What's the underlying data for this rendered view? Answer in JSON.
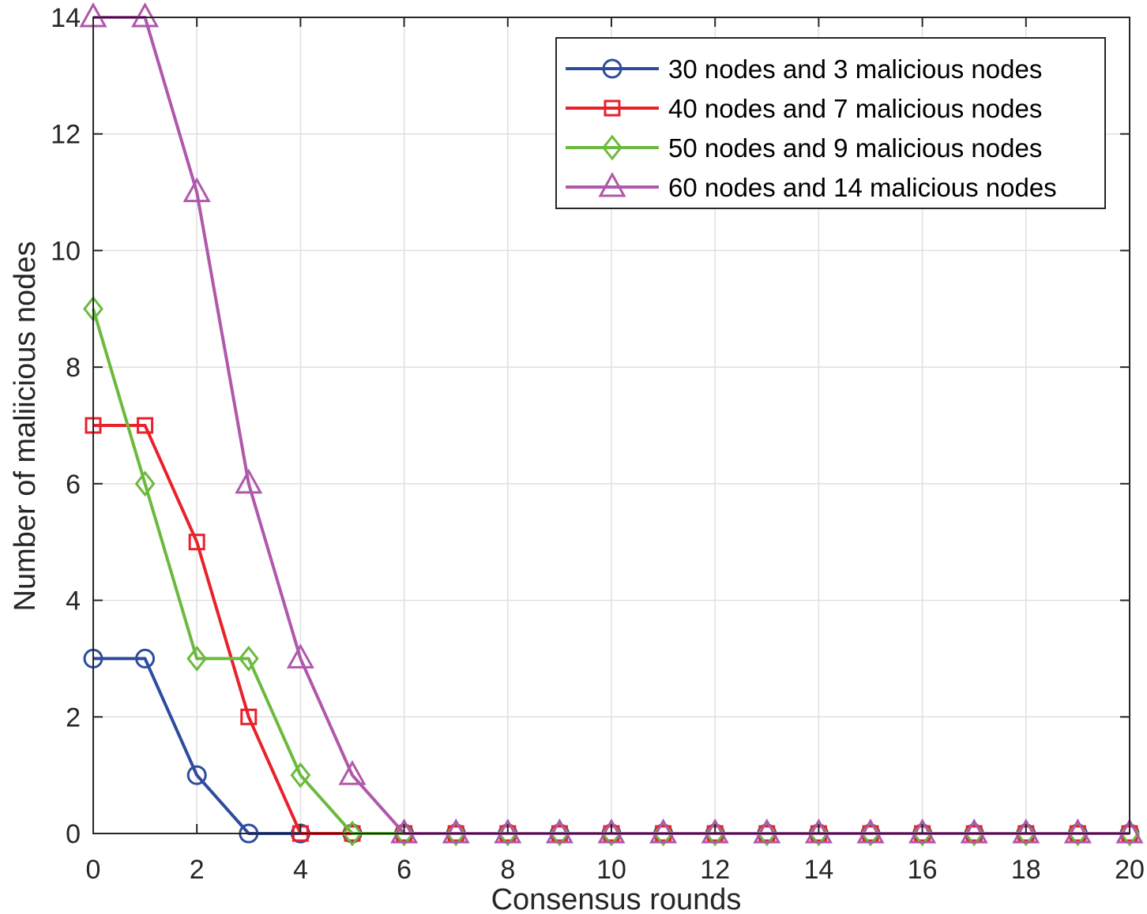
{
  "chart_data": {
    "type": "line",
    "xlabel": "Consensus rounds",
    "ylabel": "Number of maliicious nodes",
    "xlim": [
      0,
      20
    ],
    "ylim": [
      0,
      14
    ],
    "xticks": [
      0,
      2,
      4,
      6,
      8,
      10,
      12,
      14,
      16,
      18,
      20
    ],
    "yticks": [
      0,
      2,
      4,
      6,
      8,
      10,
      12,
      14
    ],
    "grid": true,
    "legend_position": "top-right",
    "x": [
      0,
      1,
      2,
      3,
      4,
      5,
      6,
      7,
      8,
      9,
      10,
      11,
      12,
      13,
      14,
      15,
      16,
      17,
      18,
      19,
      20
    ],
    "series": [
      {
        "name": "30 nodes and 3 malicious nodes",
        "color": "#2E4C9E",
        "marker": "circle",
        "values": [
          3,
          3,
          1,
          0,
          0,
          0,
          0,
          0,
          0,
          0,
          0,
          0,
          0,
          0,
          0,
          0,
          0,
          0,
          0,
          0,
          0
        ]
      },
      {
        "name": "40 nodes and 7 malicious nodes",
        "color": "#E8212B",
        "marker": "square",
        "values": [
          7,
          7,
          5,
          2,
          0,
          0,
          0,
          0,
          0,
          0,
          0,
          0,
          0,
          0,
          0,
          0,
          0,
          0,
          0,
          0,
          0
        ]
      },
      {
        "name": "50 nodes and 9 malicious nodes",
        "color": "#6BBA3F",
        "marker": "diamond",
        "values": [
          9,
          6,
          3,
          3,
          1,
          0,
          0,
          0,
          0,
          0,
          0,
          0,
          0,
          0,
          0,
          0,
          0,
          0,
          0,
          0,
          0
        ]
      },
      {
        "name": "60 nodes and 14 malicious nodes",
        "color": "#B058AA",
        "marker": "triangle",
        "values": [
          14,
          14,
          11,
          6,
          3,
          1,
          0,
          0,
          0,
          0,
          0,
          0,
          0,
          0,
          0,
          0,
          0,
          0,
          0,
          0,
          0
        ]
      }
    ]
  }
}
